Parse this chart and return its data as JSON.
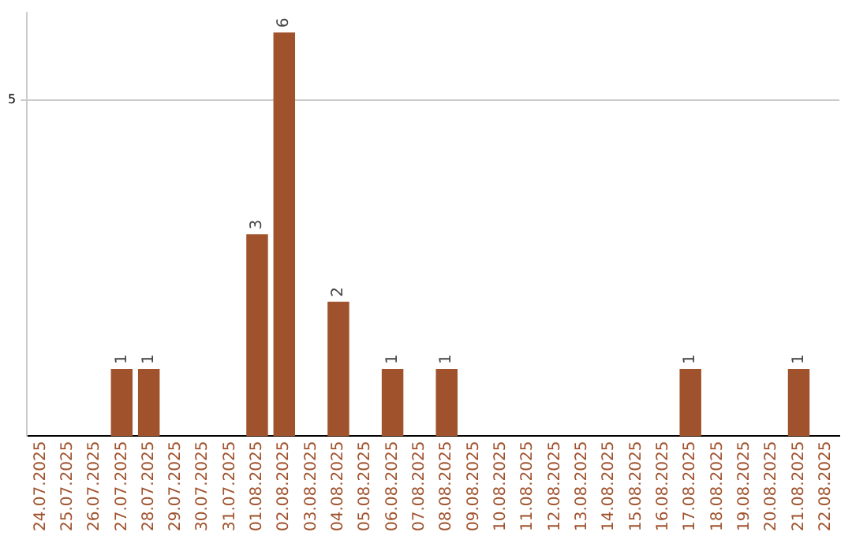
{
  "chart_data": {
    "type": "bar",
    "categories": [
      "24.07.2025",
      "25.07.2025",
      "26.07.2025",
      "27.07.2025",
      "28.07.2025",
      "29.07.2025",
      "30.07.2025",
      "31.07.2025",
      "01.08.2025",
      "02.08.2025",
      "03.08.2025",
      "04.08.2025",
      "05.08.2025",
      "06.08.2025",
      "07.08.2025",
      "08.08.2025",
      "09.08.2025",
      "10.08.2025",
      "11.08.2025",
      "12.08.2025",
      "13.08.2025",
      "14.08.2025",
      "15.08.2025",
      "16.08.2025",
      "17.08.2025",
      "18.08.2025",
      "19.08.2025",
      "20.08.2025",
      "21.08.2025",
      "22.08.2025"
    ],
    "values": [
      0,
      0,
      0,
      1,
      1,
      0,
      0,
      0,
      3,
      6,
      0,
      2,
      0,
      1,
      0,
      1,
      0,
      0,
      0,
      0,
      0,
      0,
      0,
      0,
      1,
      0,
      0,
      0,
      1,
      0
    ],
    "value_labels": [
      null,
      null,
      null,
      "1",
      "1",
      null,
      null,
      null,
      "3",
      "6",
      null,
      "2",
      null,
      "1",
      null,
      "1",
      null,
      null,
      null,
      null,
      null,
      null,
      null,
      null,
      "1",
      null,
      null,
      null,
      "1",
      null
    ],
    "color": "#a0522d",
    "ylim": [
      0,
      6.3
    ],
    "yticks": [
      5
    ],
    "grid": "y",
    "legend": false
  }
}
